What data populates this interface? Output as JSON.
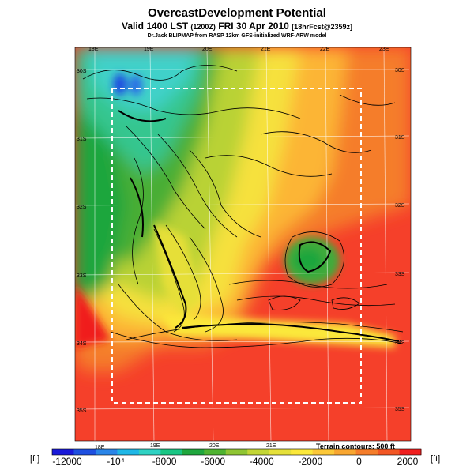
{
  "header": {
    "title": "OvercastDevelopment Potential",
    "valid_main": "Valid 1400 LST",
    "valid_utc": "(1200Z)",
    "valid_date": "FRI 30 Apr 2010",
    "forecast_tag": "[18hrFcst@2359z]",
    "credit": "Dr.Jack BLIPMAP from RASP 12km GFS-initialized WRF-ARW model"
  },
  "map": {
    "lon_labels": [
      "18E",
      "19E",
      "20E",
      "21E",
      "22E",
      "23E"
    ],
    "lat_labels": [
      "30S",
      "31S",
      "32S",
      "33S",
      "34S",
      "35S"
    ],
    "note": "Terrain contours: 500 ft",
    "colors": {
      "red": "#f01e1e",
      "orange": "#f57d2a",
      "yellow": "#fbe83a",
      "green": "#1fa63d",
      "cyan": "#3fd1c9",
      "blue": "#1e4fe0"
    }
  },
  "colorbar": {
    "unit_left": "[ft]",
    "unit_right": "[ft]",
    "ticks": [
      "-12000",
      "-10⁴",
      "-8000",
      "-6000",
      "-4000",
      "-2000",
      "0",
      "2000"
    ],
    "colors": [
      "#1919d9",
      "#1e4fe0",
      "#2a85e8",
      "#1fb7e6",
      "#2fd2c3",
      "#19c684",
      "#1fa63d",
      "#4fb331",
      "#8fc533",
      "#c3d636",
      "#e5e03a",
      "#fbe83a",
      "#fcc838",
      "#f8a630",
      "#f57d2a",
      "#f25624",
      "#f01e1e"
    ]
  }
}
